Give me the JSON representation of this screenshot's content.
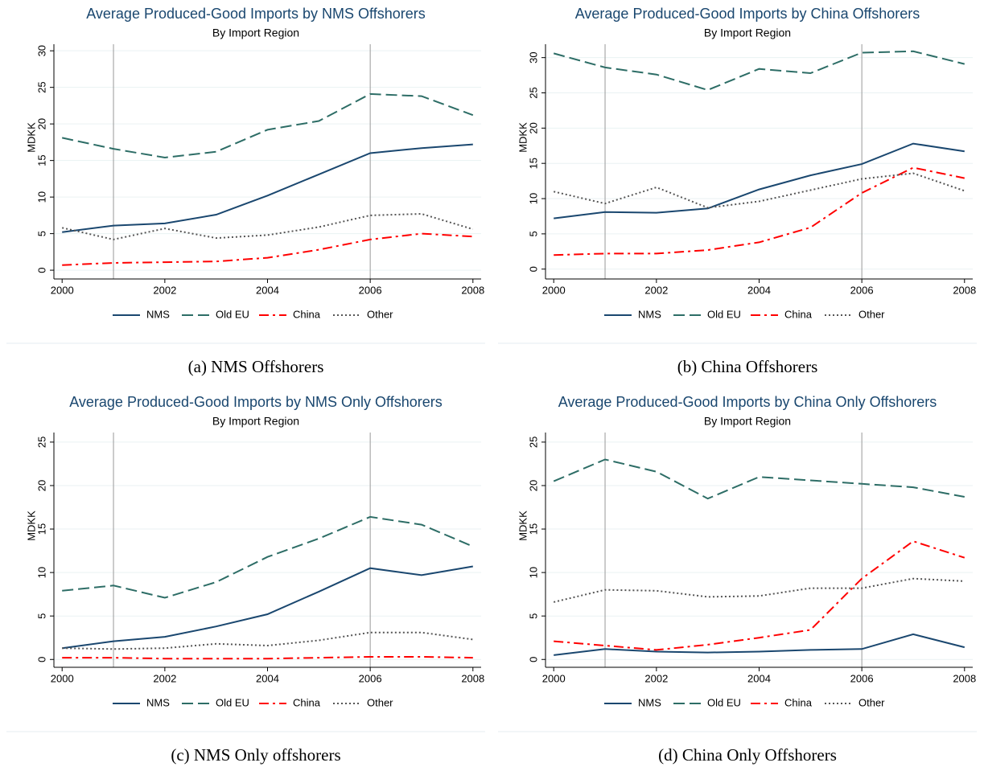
{
  "chart_data": [
    {
      "type": "line",
      "title": "Average Produced-Good Imports by NMS Offshorers",
      "subtitle": "By Import Region",
      "y_label": "MDKK",
      "caption": "(a) NMS Offshorers",
      "x": [
        2000,
        2001,
        2002,
        2003,
        2004,
        2005,
        2006,
        2007,
        2008
      ],
      "xlim": [
        1999.84,
        2008.16
      ],
      "xticks": [
        2000,
        2002,
        2004,
        2006,
        2008
      ],
      "ylim": [
        -1.2,
        30.9
      ],
      "yticks": [
        0,
        5,
        10,
        15,
        20,
        25,
        30
      ],
      "grid": true,
      "vlines": [
        2001,
        2006
      ],
      "series": [
        {
          "name": "NMS",
          "color": "#1a476f",
          "dash": "solid",
          "values": [
            5.2,
            6.1,
            6.4,
            7.6,
            10.2,
            13.1,
            16.0,
            16.7,
            17.2
          ]
        },
        {
          "name": "Old EU",
          "color": "#2d6d66",
          "dash": "longdash",
          "values": [
            18.1,
            16.6,
            15.4,
            16.2,
            19.2,
            20.4,
            24.1,
            23.8,
            21.2
          ]
        },
        {
          "name": "China",
          "color": "#ff0000",
          "dash": "dashdot",
          "values": [
            0.7,
            1.0,
            1.1,
            1.2,
            1.7,
            2.8,
            4.2,
            5.0,
            4.6
          ]
        },
        {
          "name": "Other",
          "color": "#555555",
          "dash": "dot",
          "values": [
            5.8,
            4.2,
            5.7,
            4.4,
            4.8,
            5.9,
            7.5,
            7.7,
            5.6
          ]
        }
      ]
    },
    {
      "type": "line",
      "title": "Average Produced-Good Imports by China Offshorers",
      "subtitle": "By Import Region",
      "y_label": "MDKK",
      "caption": "(b) China Offshorers",
      "x": [
        2000,
        2001,
        2002,
        2003,
        2004,
        2005,
        2006,
        2007,
        2008
      ],
      "xlim": [
        1999.84,
        2008.16
      ],
      "xticks": [
        2000,
        2002,
        2004,
        2006,
        2008
      ],
      "ylim": [
        -1.4,
        31.9
      ],
      "yticks": [
        0,
        5,
        10,
        15,
        20,
        25,
        30
      ],
      "grid": true,
      "vlines": [
        2001,
        2006
      ],
      "series": [
        {
          "name": "NMS",
          "color": "#1a476f",
          "dash": "solid",
          "values": [
            7.2,
            8.1,
            8.0,
            8.6,
            11.3,
            13.3,
            14.9,
            17.8,
            16.7
          ]
        },
        {
          "name": "Old EU",
          "color": "#2d6d66",
          "dash": "longdash",
          "values": [
            30.6,
            28.6,
            27.6,
            25.4,
            28.4,
            27.8,
            30.7,
            30.9,
            29.1
          ]
        },
        {
          "name": "China",
          "color": "#ff0000",
          "dash": "dashdot",
          "values": [
            2.0,
            2.2,
            2.2,
            2.7,
            3.8,
            5.9,
            10.8,
            14.4,
            12.9
          ]
        },
        {
          "name": "Other",
          "color": "#555555",
          "dash": "dot",
          "values": [
            11.0,
            9.3,
            11.6,
            8.7,
            9.6,
            11.2,
            12.8,
            13.6,
            11.1
          ]
        }
      ]
    },
    {
      "type": "line",
      "title": "Average Produced-Good Imports by NMS Only Offshorers",
      "subtitle": "By Import Region",
      "y_label": "MDKK",
      "caption": "(c) NMS Only offshorers",
      "x": [
        2000,
        2001,
        2002,
        2003,
        2004,
        2005,
        2006,
        2007,
        2008
      ],
      "xlim": [
        1999.84,
        2008.16
      ],
      "xticks": [
        2000,
        2002,
        2004,
        2006,
        2008
      ],
      "ylim": [
        -0.9,
        26.1
      ],
      "yticks": [
        0,
        5,
        10,
        15,
        20,
        25
      ],
      "grid": true,
      "vlines": [
        2001,
        2006
      ],
      "series": [
        {
          "name": "NMS",
          "color": "#1a476f",
          "dash": "solid",
          "values": [
            1.3,
            2.1,
            2.6,
            3.8,
            5.2,
            7.8,
            10.5,
            9.7,
            10.7
          ]
        },
        {
          "name": "Old EU",
          "color": "#2d6d66",
          "dash": "longdash",
          "values": [
            7.9,
            8.5,
            7.1,
            8.9,
            11.8,
            13.9,
            16.4,
            15.5,
            13.0
          ]
        },
        {
          "name": "China",
          "color": "#ff0000",
          "dash": "dashdot",
          "values": [
            0.2,
            0.2,
            0.1,
            0.1,
            0.1,
            0.2,
            0.3,
            0.3,
            0.2
          ]
        },
        {
          "name": "Other",
          "color": "#555555",
          "dash": "dot",
          "values": [
            1.3,
            1.2,
            1.3,
            1.8,
            1.6,
            2.2,
            3.1,
            3.1,
            2.3
          ]
        }
      ]
    },
    {
      "type": "line",
      "title": "Average Produced-Good Imports by China Only Offshorers",
      "subtitle": "By Import Region",
      "y_label": "MDKK",
      "caption": "(d) China Only Offshorers",
      "x": [
        2000,
        2001,
        2002,
        2003,
        2004,
        2005,
        2006,
        2007,
        2008
      ],
      "xlim": [
        1999.84,
        2008.16
      ],
      "xticks": [
        2000,
        2002,
        2004,
        2006,
        2008
      ],
      "ylim": [
        -0.9,
        26.1
      ],
      "yticks": [
        0,
        5,
        10,
        15,
        20,
        25
      ],
      "grid": true,
      "vlines": [
        2001,
        2006
      ],
      "series": [
        {
          "name": "NMS",
          "color": "#1a476f",
          "dash": "solid",
          "values": [
            0.5,
            1.2,
            0.9,
            0.8,
            0.9,
            1.1,
            1.2,
            2.9,
            1.4
          ]
        },
        {
          "name": "Old EU",
          "color": "#2d6d66",
          "dash": "longdash",
          "values": [
            20.5,
            23.0,
            21.6,
            18.5,
            21.0,
            20.6,
            20.2,
            19.8,
            18.7
          ]
        },
        {
          "name": "China",
          "color": "#ff0000",
          "dash": "dashdot",
          "values": [
            2.1,
            1.6,
            1.1,
            1.7,
            2.5,
            3.4,
            9.3,
            13.6,
            11.7
          ]
        },
        {
          "name": "Other",
          "color": "#555555",
          "dash": "dot",
          "values": [
            6.6,
            8.0,
            7.9,
            7.2,
            7.3,
            8.2,
            8.2,
            9.3,
            9.0
          ]
        }
      ]
    }
  ]
}
